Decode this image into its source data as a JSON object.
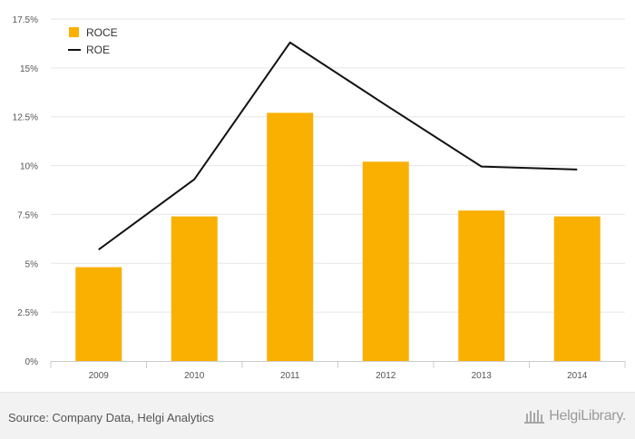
{
  "chart_data": {
    "type": "bar",
    "categories": [
      "2009",
      "2010",
      "2011",
      "2012",
      "2013",
      "2014"
    ],
    "series": [
      {
        "name": "ROCE",
        "type": "bar",
        "color": "#f9b000",
        "values": [
          4.8,
          7.4,
          12.7,
          10.2,
          7.7,
          7.4
        ]
      },
      {
        "name": "ROE",
        "type": "line",
        "color": "#111111",
        "values": [
          5.7,
          9.3,
          16.3,
          13.1,
          9.95,
          9.8
        ]
      }
    ],
    "ylim": [
      0,
      17.5
    ],
    "yticks": [
      "0%",
      "2.5%",
      "5%",
      "7.5%",
      "10%",
      "12.5%",
      "15%",
      "17.5%"
    ],
    "grid": true,
    "legend": "top-left",
    "title": "",
    "xlabel": "",
    "ylabel": ""
  },
  "footer": {
    "source": "Source: Company Data, Helgi Analytics",
    "brand": "HelgiLibrary."
  },
  "icons": {
    "brand_logo": "library-building-icon"
  }
}
